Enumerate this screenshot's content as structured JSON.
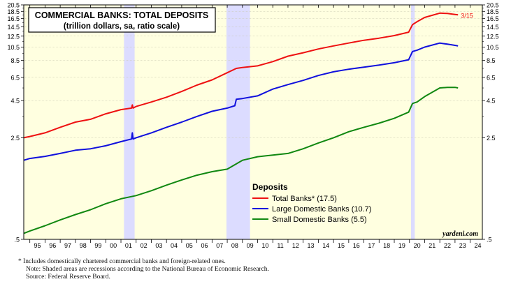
{
  "chart_data": {
    "type": "line",
    "title": "COMMERCIAL BANKS: TOTAL DEPOSITS",
    "subtitle": "(trillion dollars, sa, ratio scale)",
    "scale": "log",
    "ylim": [
      0.5,
      20.5
    ],
    "xlim": [
      1994.6,
      2024.8
    ],
    "y_ticks": [
      ".5",
      "2.5",
      "4.5",
      "6.5",
      "8.5",
      "10.5",
      "12.5",
      "14.5",
      "16.5",
      "18.5",
      "20.5"
    ],
    "x_ticks": [
      "95",
      "96",
      "97",
      "98",
      "99",
      "00",
      "01",
      "02",
      "03",
      "04",
      "05",
      "06",
      "07",
      "08",
      "09",
      "10",
      "11",
      "12",
      "13",
      "14",
      "15",
      "16",
      "17",
      "18",
      "19",
      "20",
      "21",
      "22",
      "23",
      "24"
    ],
    "recessions": [
      [
        2001.2,
        2001.9
      ],
      [
        2007.95,
        2009.5
      ],
      [
        2020.1,
        2020.35
      ]
    ],
    "latest_label": "3/15",
    "legend": {
      "title": "Deposits",
      "entries": [
        "Total Banks* (17.5)",
        "Large Domestic Banks (10.7)",
        "Small Domestic Banks (5.5)"
      ]
    },
    "watermark": "yardeni.com",
    "colors": {
      "total": "#ee1111",
      "large": "#1010dd",
      "small": "#118811",
      "plot_bg": "#ffffe0",
      "recession": "#dcdcff"
    },
    "series": [
      {
        "name": "Total Banks*",
        "key": "total",
        "points": [
          [
            1994.6,
            2.5
          ],
          [
            1995,
            2.55
          ],
          [
            1996,
            2.7
          ],
          [
            1997,
            2.95
          ],
          [
            1998,
            3.2
          ],
          [
            1999,
            3.35
          ],
          [
            2000,
            3.65
          ],
          [
            2001,
            3.9
          ],
          [
            2001.7,
            4.0
          ],
          [
            2001.75,
            4.2
          ],
          [
            2001.8,
            4.0
          ],
          [
            2002,
            4.1
          ],
          [
            2003,
            4.4
          ],
          [
            2004,
            4.75
          ],
          [
            2005,
            5.2
          ],
          [
            2006,
            5.75
          ],
          [
            2007,
            6.25
          ],
          [
            2008,
            7.0
          ],
          [
            2008.6,
            7.5
          ],
          [
            2009,
            7.6
          ],
          [
            2010,
            7.8
          ],
          [
            2011,
            8.35
          ],
          [
            2012,
            9.1
          ],
          [
            2013,
            9.6
          ],
          [
            2014,
            10.2
          ],
          [
            2015,
            10.7
          ],
          [
            2016,
            11.2
          ],
          [
            2017,
            11.7
          ],
          [
            2018,
            12.1
          ],
          [
            2019,
            12.6
          ],
          [
            2019.95,
            13.3
          ],
          [
            2020.2,
            15.0
          ],
          [
            2020.5,
            15.7
          ],
          [
            2021,
            16.8
          ],
          [
            2022,
            18.0
          ],
          [
            2022.5,
            17.9
          ],
          [
            2023,
            17.6
          ],
          [
            2023.2,
            17.5
          ]
        ]
      },
      {
        "name": "Large Domestic Banks",
        "key": "large",
        "points": [
          [
            1994.6,
            1.75
          ],
          [
            1995,
            1.8
          ],
          [
            1996,
            1.86
          ],
          [
            1997,
            1.95
          ],
          [
            1998,
            2.05
          ],
          [
            1999,
            2.1
          ],
          [
            2000,
            2.2
          ],
          [
            2001,
            2.35
          ],
          [
            2001.7,
            2.45
          ],
          [
            2001.75,
            2.7
          ],
          [
            2001.8,
            2.45
          ],
          [
            2002,
            2.5
          ],
          [
            2003,
            2.7
          ],
          [
            2004,
            2.95
          ],
          [
            2005,
            3.2
          ],
          [
            2006,
            3.5
          ],
          [
            2007,
            3.8
          ],
          [
            2008,
            4.0
          ],
          [
            2008.5,
            4.15
          ],
          [
            2008.6,
            4.6
          ],
          [
            2009,
            4.65
          ],
          [
            2010,
            4.85
          ],
          [
            2011,
            5.4
          ],
          [
            2012,
            5.8
          ],
          [
            2013,
            6.2
          ],
          [
            2014,
            6.7
          ],
          [
            2015,
            7.1
          ],
          [
            2016,
            7.4
          ],
          [
            2017,
            7.65
          ],
          [
            2018,
            7.9
          ],
          [
            2019,
            8.2
          ],
          [
            2019.95,
            8.6
          ],
          [
            2020.2,
            9.8
          ],
          [
            2020.5,
            10.0
          ],
          [
            2021,
            10.5
          ],
          [
            2022,
            11.2
          ],
          [
            2022.5,
            11.0
          ],
          [
            2023,
            10.8
          ],
          [
            2023.2,
            10.7
          ]
        ]
      },
      {
        "name": "Small Domestic Banks",
        "key": "small",
        "points": [
          [
            1994.6,
            0.55
          ],
          [
            1995,
            0.57
          ],
          [
            1996,
            0.62
          ],
          [
            1997,
            0.68
          ],
          [
            1998,
            0.74
          ],
          [
            1999,
            0.8
          ],
          [
            2000,
            0.88
          ],
          [
            2001,
            0.95
          ],
          [
            2002,
            1.0
          ],
          [
            2003,
            1.08
          ],
          [
            2004,
            1.18
          ],
          [
            2005,
            1.28
          ],
          [
            2006,
            1.38
          ],
          [
            2007,
            1.46
          ],
          [
            2008,
            1.52
          ],
          [
            2009,
            1.75
          ],
          [
            2010,
            1.85
          ],
          [
            2011,
            1.9
          ],
          [
            2012,
            1.95
          ],
          [
            2013,
            2.1
          ],
          [
            2014,
            2.3
          ],
          [
            2015,
            2.5
          ],
          [
            2016,
            2.75
          ],
          [
            2017,
            2.95
          ],
          [
            2018,
            3.15
          ],
          [
            2019,
            3.4
          ],
          [
            2019.95,
            3.75
          ],
          [
            2020.2,
            4.3
          ],
          [
            2020.5,
            4.4
          ],
          [
            2021,
            4.8
          ],
          [
            2022,
            5.5
          ],
          [
            2022.5,
            5.55
          ],
          [
            2023,
            5.55
          ],
          [
            2023.2,
            5.5
          ]
        ]
      }
    ]
  },
  "footnotes": [
    "*  Includes domestically chartered commercial banks and foreign-related ones.",
    "Note: Shaded areas are recessions according to the National Bureau of Economic Research.",
    "Source: Federal Reserve Board."
  ]
}
